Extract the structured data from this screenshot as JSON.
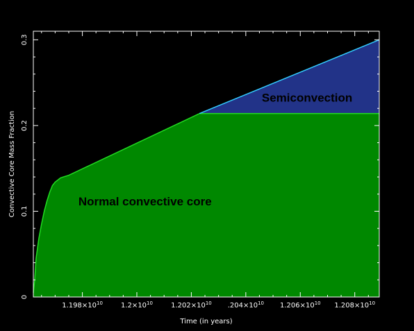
{
  "chart_data": {
    "type": "area",
    "title": "",
    "xlabel": "Time (in years)",
    "ylabel": "Convective Core Mass Fraction",
    "xlim": [
      11962000000,
      12089000000
    ],
    "ylim": [
      0,
      0.31
    ],
    "x_ticks": [
      {
        "value": 11980000000,
        "mant": "1.198×10",
        "exp": "10"
      },
      {
        "value": 12000000000,
        "mant": "1.2×10",
        "exp": "10"
      },
      {
        "value": 12020000000,
        "mant": "1.202×10",
        "exp": "10"
      },
      {
        "value": 12040000000,
        "mant": ".204×10",
        "exp": "10"
      },
      {
        "value": 12060000000,
        "mant": "1.206×10",
        "exp": "10"
      },
      {
        "value": 12080000000,
        "mant": "1.208×10",
        "exp": "10"
      }
    ],
    "y_ticks": [
      {
        "value": 0,
        "label": "0"
      },
      {
        "value": 0.1,
        "label": "0.1"
      },
      {
        "value": 0.2,
        "label": "0.2"
      },
      {
        "value": 0.3,
        "label": "0.3"
      }
    ],
    "grid": false,
    "series": [
      {
        "label": "Normal convective core",
        "color": "#008800",
        "edge_color": "#22dd22",
        "x": [
          11962000000,
          11962500000,
          11963000000,
          11964000000,
          11965000000,
          11966000000,
          11967000000,
          11968000000,
          11969000000,
          11970000000,
          11972000000,
          11975000000,
          12023000000,
          12089000000
        ],
        "y": [
          0.005,
          0.02,
          0.045,
          0.068,
          0.085,
          0.1,
          0.112,
          0.122,
          0.13,
          0.134,
          0.139,
          0.142,
          0.214,
          0.214
        ]
      },
      {
        "label": "Semiconvection",
        "color": "#223388",
        "edge_color": "#33ccff",
        "x": [
          12023000000,
          12089000000
        ],
        "y_low": [
          0.214,
          0.214
        ],
        "y_high": [
          0.214,
          0.3
        ]
      }
    ],
    "annotations": [
      {
        "text": "Normal convective core",
        "x": 12003000000,
        "y": 0.107
      },
      {
        "text": "Semiconvection",
        "x": 12062500000,
        "y": 0.228
      }
    ]
  }
}
